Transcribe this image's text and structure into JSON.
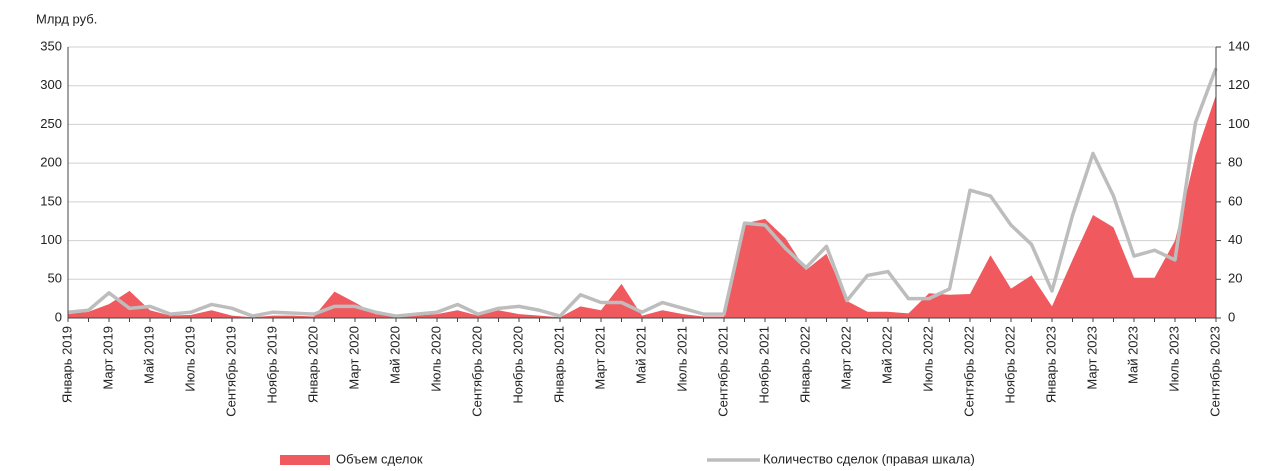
{
  "chart_data": {
    "type": "area_line",
    "y_label": "Млрд руб.",
    "categories": [
      "Январь 2019",
      null,
      "Март 2019",
      null,
      "Май 2019",
      null,
      "Июль 2019",
      null,
      "Сентябрь 2019",
      null,
      "Ноябрь 2019",
      null,
      "Январь 2020",
      null,
      "Март 2020",
      null,
      "Май 2020",
      null,
      "Июль 2020",
      null,
      "Сентябрь 2020",
      null,
      "Ноябрь 2020",
      null,
      "Январь 2021",
      null,
      "Март 2021",
      null,
      "Май 2021",
      null,
      "Июль 2021",
      null,
      "Сентябрь 2021",
      null,
      "Ноябрь 2021",
      null,
      "Январь 2022",
      null,
      "Март 2022",
      null,
      "Май 2022",
      null,
      "Июль 2022",
      null,
      "Сентябрь 2022",
      null,
      "Ноябрь 2022",
      null,
      "Январь 2023",
      null,
      "Март 2023",
      null,
      "Май 2023",
      null,
      "Июль 2023",
      null,
      "Сентябрь 2023"
    ],
    "series": [
      {
        "name": "Объем сделок",
        "color": "#f05a5e",
        "type": "area",
        "values": [
          5,
          8,
          18,
          35,
          10,
          3,
          4,
          10,
          3,
          1,
          3,
          3,
          2,
          34,
          20,
          5,
          2,
          3,
          5,
          10,
          3,
          10,
          5,
          3,
          1,
          15,
          10,
          44,
          3,
          10,
          5,
          2,
          2,
          122,
          128,
          103,
          62,
          83,
          22,
          8,
          8,
          6,
          32,
          30,
          31,
          81,
          38,
          55,
          15,
          75,
          133,
          117,
          52,
          52,
          100,
          210,
          288
        ]
      },
      {
        "name": "Количество сделок (правая шкала)",
        "color": "#bdbdbd",
        "type": "line",
        "axis": "y2",
        "values": [
          3,
          4,
          13,
          5,
          6,
          2,
          3,
          7,
          5,
          1,
          3,
          2.5,
          2,
          6,
          6,
          3,
          1,
          2,
          3,
          7,
          2,
          5,
          6,
          4,
          1,
          12,
          8,
          8,
          3,
          8,
          5,
          2,
          2,
          49,
          48,
          36,
          26,
          37,
          9,
          22,
          24,
          10,
          10,
          15,
          66,
          63,
          48,
          38,
          14,
          53,
          85,
          63,
          32,
          35,
          30,
          101,
          129
        ]
      }
    ],
    "ylim": [
      0,
      350
    ],
    "yticks": [
      0,
      50,
      100,
      150,
      200,
      250,
      300,
      350
    ],
    "y2lim": [
      0,
      140
    ],
    "y2ticks": [
      0,
      20,
      40,
      60,
      80,
      100,
      120,
      140
    ],
    "grid": true
  }
}
